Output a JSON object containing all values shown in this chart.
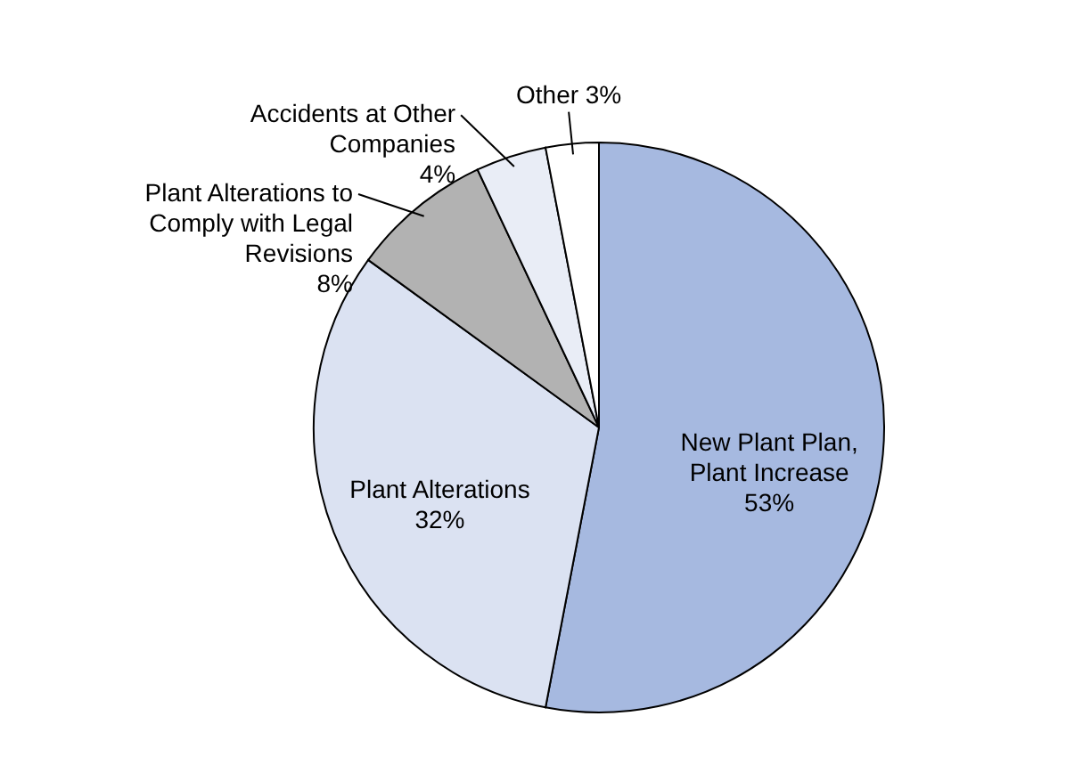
{
  "chart_data": {
    "type": "pie",
    "categories": [
      "New Plant Plan, Plant Increase",
      "Plant Alterations",
      "Plant Alterations to Comply with Legal Revisions",
      "Accidents at Other Companies",
      "Other"
    ],
    "values": [
      53,
      32,
      8,
      4,
      3
    ],
    "value_labels": [
      "53%",
      "32%",
      "8%",
      "4%",
      "3%"
    ],
    "colors": [
      "#a6b9e0",
      "#dbe2f2",
      "#b2b2b2",
      "#e9edf6",
      "#ffffff"
    ]
  }
}
